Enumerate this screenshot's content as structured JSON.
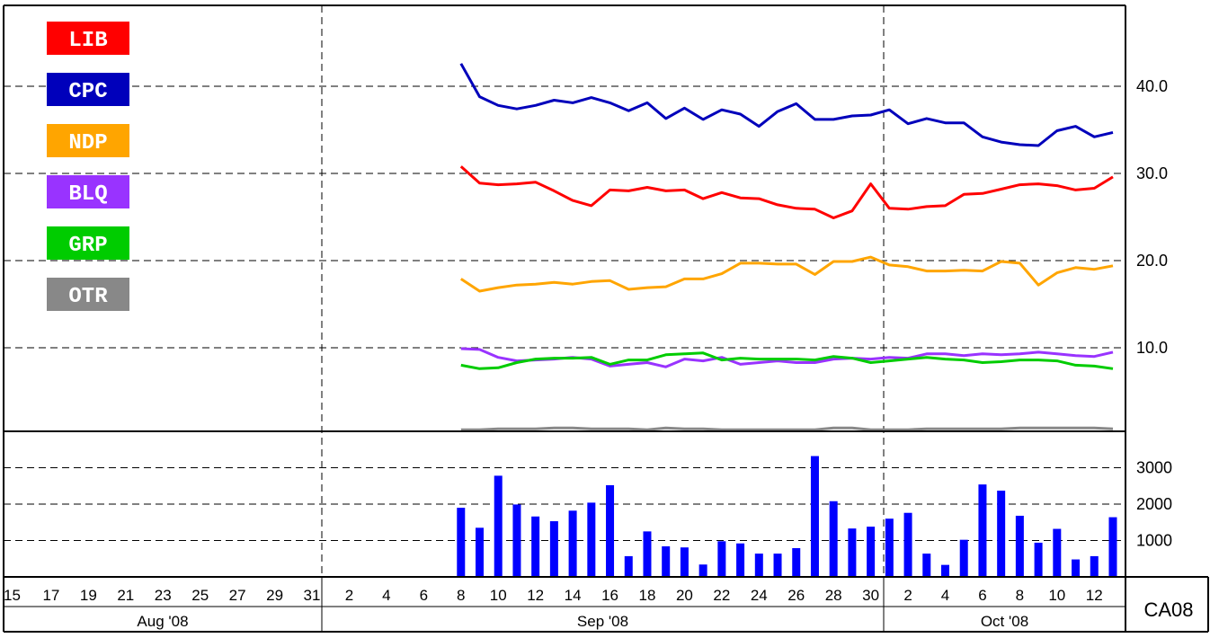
{
  "chart_data": [
    {
      "type": "line",
      "title": "",
      "xlabel": "",
      "ylabel": "",
      "x": [
        "2008-09-08",
        "2008-09-09",
        "2008-09-10",
        "2008-09-11",
        "2008-09-12",
        "2008-09-13",
        "2008-09-14",
        "2008-09-15",
        "2008-09-16",
        "2008-09-17",
        "2008-09-18",
        "2008-09-19",
        "2008-09-20",
        "2008-09-21",
        "2008-09-22",
        "2008-09-23",
        "2008-09-24",
        "2008-09-25",
        "2008-09-26",
        "2008-09-27",
        "2008-09-28",
        "2008-09-29",
        "2008-09-30",
        "2008-10-01",
        "2008-10-02",
        "2008-10-03",
        "2008-10-04",
        "2008-10-05",
        "2008-10-06",
        "2008-10-07",
        "2008-10-08",
        "2008-10-09",
        "2008-10-10",
        "2008-10-11",
        "2008-10-12",
        "2008-10-13"
      ],
      "ylim": [
        0,
        49
      ],
      "yticks": [
        "10.0",
        "20.0",
        "30.0",
        "40.0"
      ],
      "grid": true,
      "legend_position": "top-left",
      "series": [
        {
          "name": "LIB",
          "color": "#ff0000",
          "values": [
            30.8,
            28.9,
            28.7,
            28.8,
            29.0,
            28.0,
            26.9,
            26.3,
            28.1,
            28.0,
            28.4,
            28.0,
            28.1,
            27.1,
            27.8,
            27.2,
            27.1,
            26.4,
            26.0,
            25.9,
            24.9,
            25.7,
            28.8,
            26.0,
            25.9,
            26.2,
            26.3,
            27.6,
            27.7,
            28.2,
            28.7,
            28.8,
            28.6,
            28.1,
            28.3,
            29.6
          ]
        },
        {
          "name": "CPC",
          "color": "#0000bb",
          "values": [
            42.6,
            38.8,
            37.8,
            37.4,
            37.8,
            38.4,
            38.1,
            38.7,
            38.1,
            37.2,
            38.1,
            36.3,
            37.5,
            36.2,
            37.3,
            36.8,
            35.4,
            37.1,
            38.0,
            36.2,
            36.2,
            36.6,
            36.7,
            37.3,
            35.7,
            36.3,
            35.8,
            35.8,
            34.2,
            33.6,
            33.3,
            33.2,
            34.9,
            35.4,
            34.2,
            34.7
          ]
        },
        {
          "name": "NDP",
          "color": "#ffa500",
          "values": [
            17.9,
            16.5,
            16.9,
            17.2,
            17.3,
            17.5,
            17.3,
            17.6,
            17.7,
            16.7,
            16.9,
            17.0,
            17.9,
            17.9,
            18.5,
            19.7,
            19.7,
            19.6,
            19.6,
            18.4,
            19.9,
            19.9,
            20.4,
            19.5,
            19.3,
            18.8,
            18.8,
            18.9,
            18.8,
            19.9,
            19.7,
            17.2,
            18.6,
            19.2,
            19.0,
            19.4
          ]
        },
        {
          "name": "BLQ",
          "color": "#9933ff",
          "values": [
            9.9,
            9.8,
            8.9,
            8.5,
            8.6,
            8.7,
            8.9,
            8.7,
            7.9,
            8.1,
            8.3,
            7.8,
            8.7,
            8.5,
            8.9,
            8.1,
            8.3,
            8.5,
            8.3,
            8.3,
            8.7,
            8.8,
            8.7,
            8.9,
            8.8,
            9.3,
            9.3,
            9.1,
            9.3,
            9.2,
            9.3,
            9.5,
            9.3,
            9.1,
            9.0,
            9.5
          ]
        },
        {
          "name": "GRP",
          "color": "#00cc00",
          "values": [
            8.0,
            7.6,
            7.7,
            8.3,
            8.7,
            8.8,
            8.8,
            8.9,
            8.1,
            8.6,
            8.6,
            9.2,
            9.3,
            9.4,
            8.6,
            8.8,
            8.7,
            8.7,
            8.7,
            8.6,
            9.0,
            8.8,
            8.3,
            8.5,
            8.7,
            8.9,
            8.7,
            8.6,
            8.3,
            8.4,
            8.6,
            8.6,
            8.5,
            8.0,
            7.9,
            7.6
          ]
        },
        {
          "name": "OTR",
          "color": "#888888",
          "values": [
            0.6,
            0.6,
            0.7,
            0.7,
            0.7,
            0.8,
            0.8,
            0.7,
            0.7,
            0.7,
            0.6,
            0.8,
            0.7,
            0.7,
            0.6,
            0.6,
            0.6,
            0.6,
            0.6,
            0.6,
            0.8,
            0.8,
            0.6,
            0.6,
            0.6,
            0.7,
            0.7,
            0.7,
            0.7,
            0.7,
            0.8,
            0.8,
            0.8,
            0.8,
            0.8,
            0.7
          ]
        }
      ]
    },
    {
      "type": "bar",
      "title": "",
      "ylabel": "",
      "color": "#0000ff",
      "ylim": [
        0,
        3500
      ],
      "yticks": [
        "1000",
        "2000",
        "3000"
      ],
      "grid": true,
      "x": [
        "2008-09-08",
        "2008-09-09",
        "2008-09-10",
        "2008-09-11",
        "2008-09-12",
        "2008-09-13",
        "2008-09-14",
        "2008-09-15",
        "2008-09-16",
        "2008-09-17",
        "2008-09-18",
        "2008-09-19",
        "2008-09-20",
        "2008-09-21",
        "2008-09-22",
        "2008-09-23",
        "2008-09-24",
        "2008-09-25",
        "2008-09-26",
        "2008-09-27",
        "2008-09-28",
        "2008-09-29",
        "2008-09-30",
        "2008-10-01",
        "2008-10-02",
        "2008-10-03",
        "2008-10-04",
        "2008-10-05",
        "2008-10-06",
        "2008-10-07",
        "2008-10-08",
        "2008-10-09",
        "2008-10-10",
        "2008-10-11",
        "2008-10-12",
        "2008-10-13"
      ],
      "values": [
        1900,
        1350,
        2780,
        1990,
        1660,
        1530,
        1820,
        2040,
        2520,
        570,
        1250,
        840,
        810,
        340,
        980,
        920,
        640,
        640,
        790,
        3320,
        2080,
        1330,
        1380,
        1600,
        1760,
        640,
        330,
        1020,
        2540,
        2370,
        1680,
        940,
        1320,
        480,
        570,
        1640
      ]
    }
  ],
  "x_axis": {
    "start_date": "2008-08-15",
    "day_labels": [
      "15",
      "17",
      "19",
      "21",
      "23",
      "25",
      "27",
      "29",
      "31",
      "2",
      "4",
      "6",
      "8",
      "10",
      "12",
      "14",
      "16",
      "18",
      "20",
      "22",
      "24",
      "26",
      "28",
      "30",
      "2",
      "4",
      "6",
      "8",
      "10",
      "12"
    ],
    "month_labels": [
      "Aug '08",
      "Sep '08",
      "Oct '08"
    ]
  },
  "corner_label": "CA08"
}
